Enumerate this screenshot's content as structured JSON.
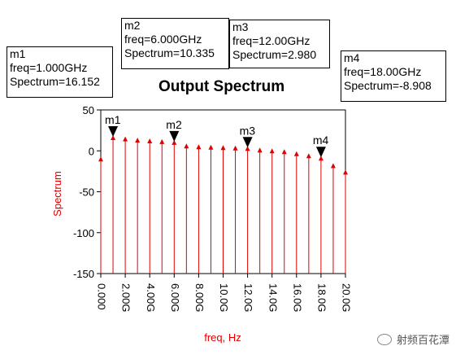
{
  "chart_data": {
    "type": "stem",
    "title": "Output Spectrum",
    "xlabel": "freq, Hz",
    "ylabel": "Spectrum",
    "xlim": [
      0,
      20
    ],
    "ylim": [
      -150,
      50
    ],
    "y_ticks": [
      50,
      0,
      -50,
      -100,
      -150
    ],
    "x_ticks": [
      0,
      2,
      4,
      6,
      8,
      10,
      12,
      14,
      16,
      18,
      20
    ],
    "x_tick_labels": [
      "0.000",
      "2.00G",
      "4.00G",
      "6.00G",
      "8.00G",
      "10.0G",
      "12.0G",
      "14.0G",
      "16.0G",
      "18.0G",
      "20.0G"
    ],
    "x_unit": "GHz",
    "series": [
      {
        "color": "#e00000",
        "x": [
          0,
          1,
          2,
          3,
          4,
          5,
          6,
          7,
          8,
          9,
          10,
          11,
          12,
          13,
          14,
          15,
          16,
          17,
          18,
          19,
          20
        ],
        "values": [
          -10,
          16.152,
          14.5,
          13,
          12.2,
          11.3,
          10.335,
          6,
          5,
          4.5,
          4,
          3.5,
          2.98,
          1,
          0,
          -1,
          -3.5,
          -6,
          -8.908,
          -18,
          -26
        ]
      }
    ],
    "markers": [
      {
        "name": "m1",
        "x": 1,
        "y": 16.152,
        "lines": [
          "m1",
          "freq=1.000GHz",
          "Spectrum=16.152"
        ]
      },
      {
        "name": "m2",
        "x": 6,
        "y": 10.335,
        "lines": [
          "m2",
          "freq=6.000GHz",
          "Spectrum=10.335"
        ]
      },
      {
        "name": "m3",
        "x": 12,
        "y": 2.98,
        "lines": [
          "m3",
          "freq=12.00GHz",
          "Spectrum=2.980"
        ]
      },
      {
        "name": "m4",
        "x": 18,
        "y": -8.908,
        "lines": [
          "m4",
          "freq=18.00GHz",
          "Spectrum=-8.908"
        ]
      }
    ],
    "colors": {
      "axis": "#000000",
      "data": "#e00000",
      "label": "#e00000"
    }
  },
  "watermark": {
    "text": "射频百花潭",
    "icon": "wechat-icon"
  }
}
